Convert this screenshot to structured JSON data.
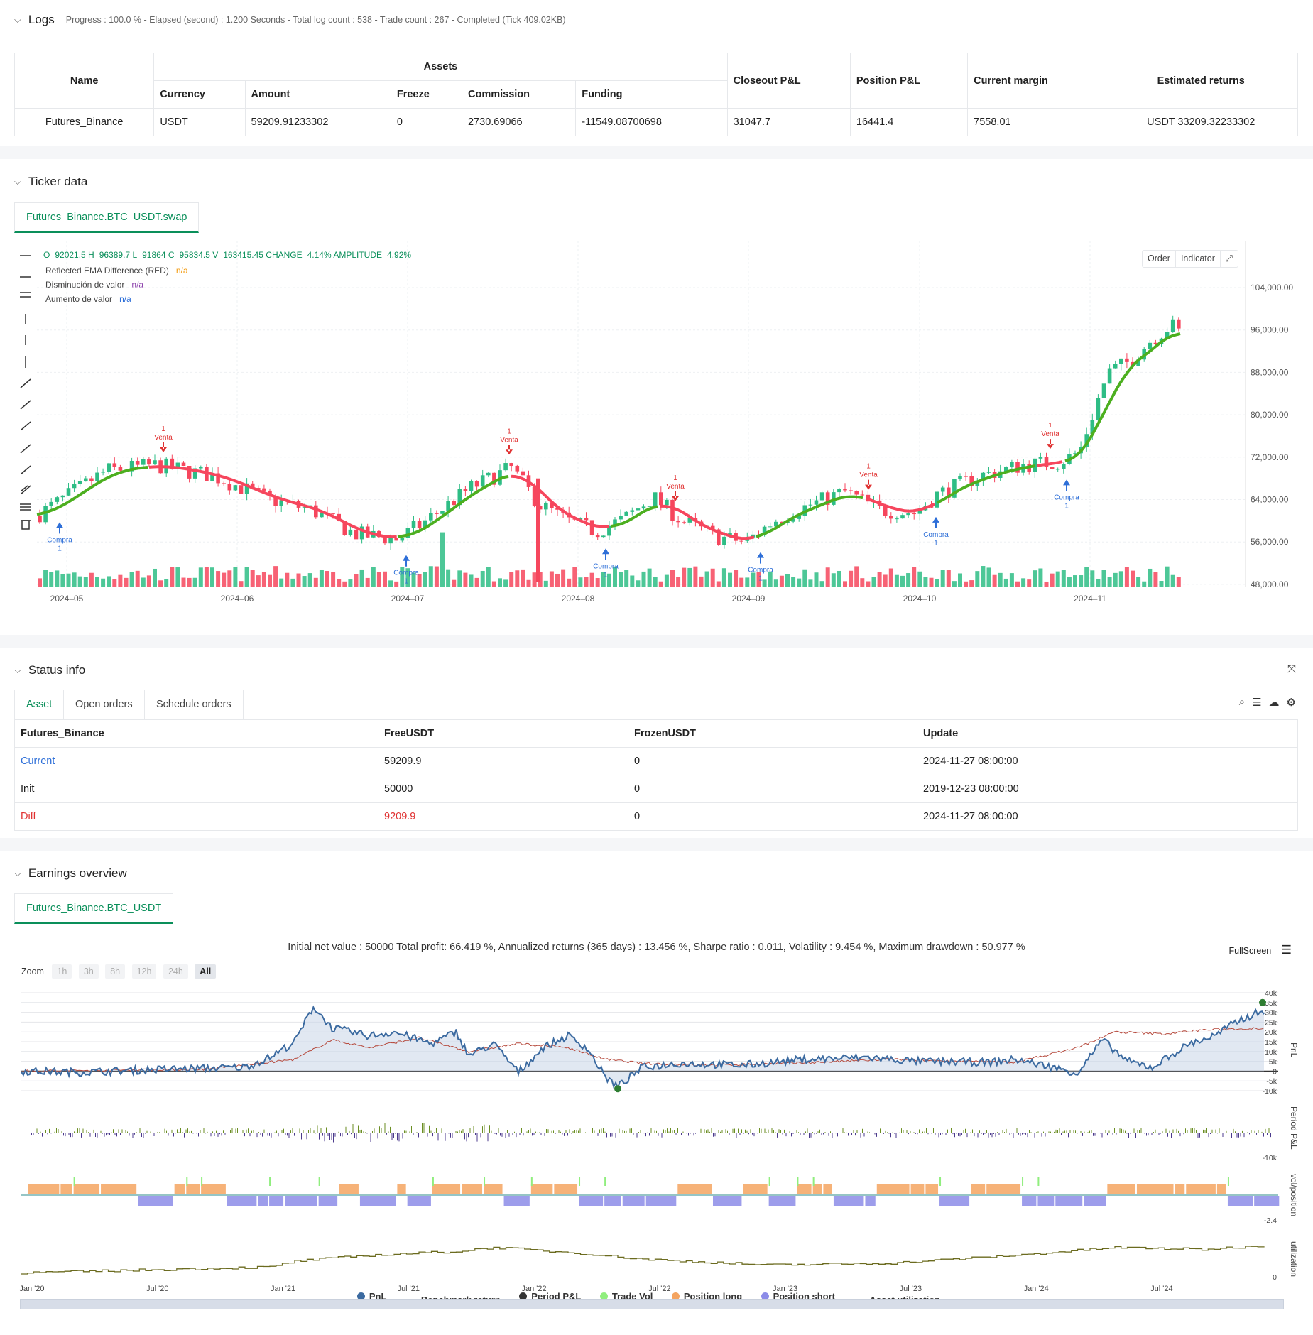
{
  "logs": {
    "title": "Logs",
    "summary": "Progress : 100.0 % - Elapsed (second) : 1.200  Seconds - Total log count : 538 - Trade count : 267 - Completed (Tick 409.02KB)",
    "table": {
      "name_header": "Name",
      "assets_header": "Assets",
      "sub_headers": [
        "Currency",
        "Amount",
        "Freeze",
        "Commission",
        "Funding"
      ],
      "right_headers": [
        "Closeout P&L",
        "Position P&L",
        "Current margin",
        "Estimated returns"
      ],
      "row": [
        "Futures_Binance",
        "USDT",
        "59209.91233302",
        "0",
        "2730.69066",
        "-11549.08700698",
        "31047.7",
        "16441.4",
        "7558.01",
        "USDT 33209.32233302"
      ]
    }
  },
  "ticker": {
    "title": "Ticker data",
    "tab": "Futures_Binance.BTC_USDT.swap",
    "ohlc": "O=92021.5 H=96389.7 L=91864 C=95834.5 V=163415.45 CHANGE=4.14% AMPLITUDE=4.92%",
    "indicators": [
      {
        "label": "Reflected EMA Difference (RED)",
        "value": "n/a",
        "color": "#f39c12"
      },
      {
        "label": "Disminución de valor",
        "value": "n/a",
        "color": "#8e44ad"
      },
      {
        "label": "Aumento de valor",
        "value": "n/a",
        "color": "#2e6fd8"
      }
    ],
    "buttons": {
      "order": "Order",
      "indicator": "Indicator"
    },
    "price_axis": [
      "104,000.00",
      "96,000.00",
      "88,000.00",
      "80,000.00",
      "72,000.00",
      "64,000.00",
      "56,000.00",
      "48,000.00"
    ],
    "date_axis": [
      "2024–05",
      "2024–06",
      "2024–07",
      "2024–08",
      "2024–09",
      "2024–10",
      "2024–11"
    ],
    "signals": [
      {
        "type": "buy",
        "label": "Compra",
        "qty": "1"
      },
      {
        "type": "sell",
        "label": "Venta",
        "qty": "1"
      },
      {
        "type": "buy",
        "label": "Compra",
        "qty": "1"
      },
      {
        "type": "sell",
        "label": "Venta",
        "qty": "1"
      },
      {
        "type": "buy",
        "label": "Compra",
        "qty": "1"
      },
      {
        "type": "sell",
        "label": "Venta",
        "qty": "1"
      },
      {
        "type": "buy",
        "label": "Compra",
        "qty": "1"
      },
      {
        "type": "sell",
        "label": "Venta",
        "qty": "1"
      },
      {
        "type": "buy",
        "label": "Compra",
        "qty": "1"
      },
      {
        "type": "sell",
        "label": "Venta",
        "qty": "1"
      },
      {
        "type": "buy",
        "label": "Compra",
        "qty": "1"
      }
    ],
    "colors": {
      "up": "#2ebd85",
      "down": "#f6465d",
      "ema_up": "#4caf1f",
      "ema_down": "#f6465d"
    }
  },
  "status": {
    "title": "Status info",
    "tabs": [
      "Asset",
      "Open orders",
      "Schedule orders"
    ],
    "headers": [
      "Futures_Binance",
      "FreeUSDT",
      "FrozenUSDT",
      "Update"
    ],
    "rows": [
      {
        "name": "Current",
        "free": "59209.9",
        "frozen": "0",
        "update": "2024-11-27 08:00:00"
      },
      {
        "name": "Init",
        "free": "50000",
        "frozen": "0",
        "update": "2019-12-23 08:00:00"
      },
      {
        "name": "Diff",
        "free": "9209.9",
        "frozen": "0",
        "update": "2024-11-27 08:00:00"
      }
    ]
  },
  "earnings": {
    "title": "Earnings overview",
    "tab": "Futures_Binance.BTC_USDT",
    "summary": "Initial net value : 50000  Total profit: 66.419 %, Annualized returns (365 days) : 13.456 %, Sharpe ratio : 0.011, Volatility : 9.454 %, Maximum drawdown : 50.977 %",
    "fullscreen": "FullScreen",
    "zoom_label": "Zoom",
    "zoom": [
      "1h",
      "3h",
      "8h",
      "12h",
      "24h",
      "All"
    ],
    "pnl_axis": [
      "40k",
      "35k",
      "30k",
      "25k",
      "20k",
      "15k",
      "10k",
      "5k",
      "0",
      "-5k",
      "-10k"
    ],
    "pnl_title": "PnL",
    "period_title": "Period P&L",
    "period_axis": "-10k",
    "pos_title": "vol/position",
    "pos_axis": "-2.4",
    "util_title": "utilization",
    "util_axis": "0",
    "date_axis": [
      "Jan '20",
      "Jul '20",
      "Jan '21",
      "Jul '21",
      "Jan '22",
      "Jul '22",
      "Jan '23",
      "Jul '23",
      "Jan '24",
      "Jul '24"
    ],
    "legend": [
      {
        "label": "PnL",
        "color": "#3b6aa0",
        "shape": "dot"
      },
      {
        "label": "Benchmark return",
        "color": "#b5473a",
        "shape": "line"
      },
      {
        "label": "Period P&L",
        "color": "#333333",
        "shape": "dot"
      },
      {
        "label": "Trade Vol",
        "color": "#90ee7e",
        "shape": "dot"
      },
      {
        "label": "Position long",
        "color": "#f4a460",
        "shape": "dot"
      },
      {
        "label": "Position short",
        "color": "#8c8ce8",
        "shape": "dot"
      },
      {
        "label": "Asset utilization",
        "color": "#6b6b1f",
        "shape": "line"
      }
    ]
  }
}
